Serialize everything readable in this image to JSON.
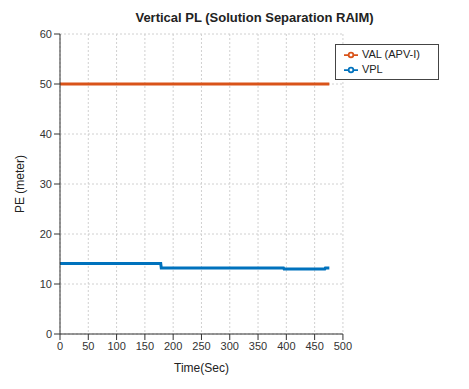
{
  "chart_data": {
    "type": "line",
    "title": "Vertical PL (Solution Separation RAIM)",
    "x_label": "Time(Sec)",
    "y_label": "PE (meter)",
    "x": [
      0,
      178,
      179,
      395,
      396,
      468,
      469,
      476
    ],
    "series": [
      {
        "name": "VPL",
        "color": "#0072BD",
        "values": [
          14.1,
          14.1,
          13.2,
          13.2,
          13.0,
          13.0,
          13.2,
          13.2
        ]
      },
      {
        "name": "VAL (APV-I)",
        "color": "#D95319",
        "values": [
          50,
          50,
          50,
          50,
          50,
          50,
          50,
          50
        ]
      }
    ],
    "xlim": [
      0,
      500
    ],
    "xticks": [
      0,
      50,
      100,
      150,
      200,
      250,
      300,
      350,
      400,
      450,
      500
    ],
    "ylim": [
      0,
      60
    ],
    "yticks": [
      0,
      10,
      20,
      30,
      40,
      50,
      60
    ],
    "grid": true,
    "legend": "top-right"
  }
}
